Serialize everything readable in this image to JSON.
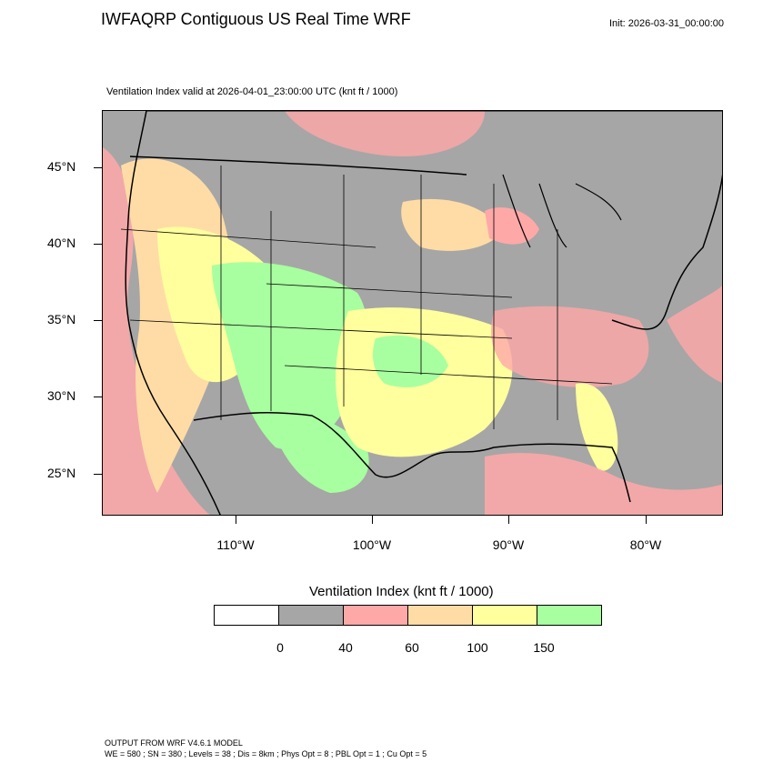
{
  "header": {
    "title": "IWFAQRP Contiguous US Real Time WRF",
    "init": "Init: 2026-03-31_00:00:00"
  },
  "plot": {
    "subtitle": "Ventilation Index valid at 2026-04-01_23:00:00 UTC   (knt ft / 1000)"
  },
  "axes": {
    "latitudes": [
      "45°N",
      "40°N",
      "35°N",
      "30°N",
      "25°N"
    ],
    "longitudes": [
      "110°W",
      "100°W",
      "90°W",
      "80°W"
    ]
  },
  "colorbar": {
    "title": "Ventilation Index  (knt ft / 1000)",
    "labels": [
      "0",
      "40",
      "60",
      "100",
      "150"
    ],
    "colors": [
      "#ffffff",
      "#a6a6a6",
      "#ffa8a8",
      "#ffdca6",
      "#ffff9e",
      "#a8ffa0"
    ]
  },
  "footer": {
    "line1": "OUTPUT FROM WRF V4.6.1 MODEL",
    "line2": "WE = 580 ; SN = 380 ; Levels = 38 ; Dis = 8km ; Phys Opt = 8 ; PBL Opt = 1 ; Cu Opt = 5"
  }
}
